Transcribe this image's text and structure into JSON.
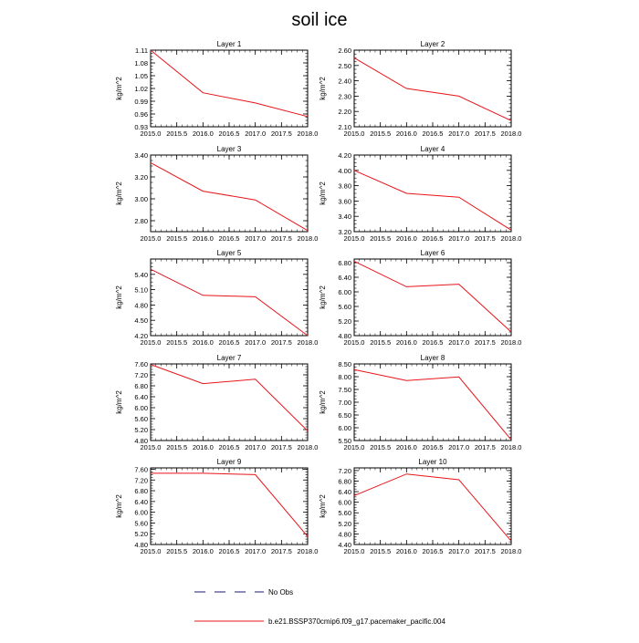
{
  "title": "soil ice",
  "ylabel": "kg/m^2",
  "legend": {
    "obs_label": "No Obs",
    "model_label": "b.e21.BSSP370cmip6.f09_g17.pacemaker_pacific.004",
    "obs_color": "#1a1a6e",
    "model_color": "#e8141a"
  },
  "chart_data": [
    {
      "type": "line",
      "title": "Layer 1",
      "x": [
        2015,
        2016,
        2017,
        2018
      ],
      "y": [
        1.11,
        1.01,
        0.986,
        0.954
      ],
      "xlim": [
        2015,
        2018
      ],
      "ylim": [
        0.93,
        1.11
      ],
      "yticks": [
        "0.93",
        "0.96",
        "0.99",
        "1.02",
        "1.05",
        "1.08",
        "1.11"
      ],
      "xticks": [
        "2015.0",
        "2015.5",
        "2016.0",
        "2016.5",
        "2017.0",
        "2017.5",
        "2018.0"
      ]
    },
    {
      "type": "line",
      "title": "Layer 2",
      "x": [
        2015,
        2016,
        2017,
        2018
      ],
      "y": [
        2.55,
        2.35,
        2.3,
        2.14
      ],
      "xlim": [
        2015,
        2018
      ],
      "ylim": [
        2.1,
        2.6
      ],
      "yticks": [
        "2.10",
        "2.20",
        "2.30",
        "2.40",
        "2.50",
        "2.60"
      ],
      "xticks": [
        "2015.0",
        "2015.5",
        "2016.0",
        "2016.5",
        "2017.0",
        "2017.5",
        "2018.0"
      ]
    },
    {
      "type": "line",
      "title": "Layer 3",
      "x": [
        2015,
        2016,
        2017,
        2018
      ],
      "y": [
        3.33,
        3.07,
        2.99,
        2.71
      ],
      "xlim": [
        2015,
        2018
      ],
      "ylim": [
        2.7,
        3.4
      ],
      "yticks": [
        "2.80",
        "3.00",
        "3.20",
        "3.40"
      ],
      "xticks": [
        "2015.0",
        "2015.5",
        "2016.0",
        "2016.5",
        "2017.0",
        "2017.5",
        "2018.0"
      ]
    },
    {
      "type": "line",
      "title": "Layer 4",
      "x": [
        2015,
        2016,
        2017,
        2018
      ],
      "y": [
        4.0,
        3.7,
        3.65,
        3.22
      ],
      "xlim": [
        2015,
        2018
      ],
      "ylim": [
        3.2,
        4.2
      ],
      "yticks": [
        "3.20",
        "3.40",
        "3.60",
        "3.80",
        "4.00",
        "4.20"
      ],
      "xticks": [
        "2015.0",
        "2015.5",
        "2016.0",
        "2016.5",
        "2017.0",
        "2017.5",
        "2018.0"
      ]
    },
    {
      "type": "line",
      "title": "Layer 5",
      "x": [
        2015,
        2016,
        2017,
        2018
      ],
      "y": [
        5.5,
        4.99,
        4.96,
        4.2
      ],
      "xlim": [
        2015,
        2018
      ],
      "ylim": [
        4.2,
        5.7
      ],
      "yticks": [
        "4.20",
        "4.50",
        "4.80",
        "5.10",
        "5.40"
      ],
      "xticks": [
        "2015.0",
        "2015.5",
        "2016.0",
        "2016.5",
        "2017.0",
        "2017.5",
        "2018.0"
      ]
    },
    {
      "type": "line",
      "title": "Layer 6",
      "x": [
        2015,
        2016,
        2017,
        2018
      ],
      "y": [
        6.84,
        6.14,
        6.21,
        4.9
      ],
      "xlim": [
        2015,
        2018
      ],
      "ylim": [
        4.8,
        6.9
      ],
      "yticks": [
        "4.80",
        "5.20",
        "5.60",
        "6.00",
        "6.40",
        "6.80"
      ],
      "xticks": [
        "2015.0",
        "2015.5",
        "2016.0",
        "2016.5",
        "2017.0",
        "2017.5",
        "2018.0"
      ]
    },
    {
      "type": "line",
      "title": "Layer 7",
      "x": [
        2015,
        2016,
        2017,
        2018
      ],
      "y": [
        7.58,
        6.88,
        7.04,
        5.15
      ],
      "xlim": [
        2015,
        2018
      ],
      "ylim": [
        4.8,
        7.6
      ],
      "yticks": [
        "4.80",
        "5.20",
        "5.60",
        "6.00",
        "6.40",
        "6.80",
        "7.20",
        "7.60"
      ],
      "xticks": [
        "2015.0",
        "2015.5",
        "2016.0",
        "2016.5",
        "2017.0",
        "2017.5",
        "2018.0"
      ]
    },
    {
      "type": "line",
      "title": "Layer 8",
      "x": [
        2015,
        2016,
        2017,
        2018
      ],
      "y": [
        8.28,
        7.85,
        7.99,
        5.53
      ],
      "xlim": [
        2015,
        2018
      ],
      "ylim": [
        5.5,
        8.5
      ],
      "yticks": [
        "5.50",
        "6.00",
        "6.50",
        "7.00",
        "7.50",
        "8.00",
        "8.50"
      ],
      "xticks": [
        "2015.0",
        "2015.5",
        "2016.0",
        "2016.5",
        "2017.0",
        "2017.5",
        "2018.0"
      ]
    },
    {
      "type": "line",
      "title": "Layer 9",
      "x": [
        2015,
        2016,
        2017,
        2018
      ],
      "y": [
        7.45,
        7.45,
        7.4,
        5.1
      ],
      "xlim": [
        2015,
        2018
      ],
      "ylim": [
        4.8,
        7.65
      ],
      "yticks": [
        "4.80",
        "5.20",
        "5.60",
        "6.00",
        "6.40",
        "6.80",
        "7.20",
        "7.60"
      ],
      "xticks": [
        "2015.0",
        "2015.5",
        "2016.0",
        "2016.5",
        "2017.0",
        "2017.5",
        "2018.0"
      ]
    },
    {
      "type": "line",
      "title": "Layer 10",
      "x": [
        2015,
        2016,
        2017,
        2018
      ],
      "y": [
        6.25,
        7.07,
        6.85,
        4.53
      ],
      "xlim": [
        2015,
        2018
      ],
      "ylim": [
        4.4,
        7.3
      ],
      "yticks": [
        "4.40",
        "4.80",
        "5.20",
        "5.60",
        "6.00",
        "6.40",
        "6.80",
        "7.20"
      ],
      "xticks": [
        "2015.0",
        "2015.5",
        "2016.0",
        "2016.5",
        "2017.0",
        "2017.5",
        "2018.0"
      ]
    }
  ]
}
